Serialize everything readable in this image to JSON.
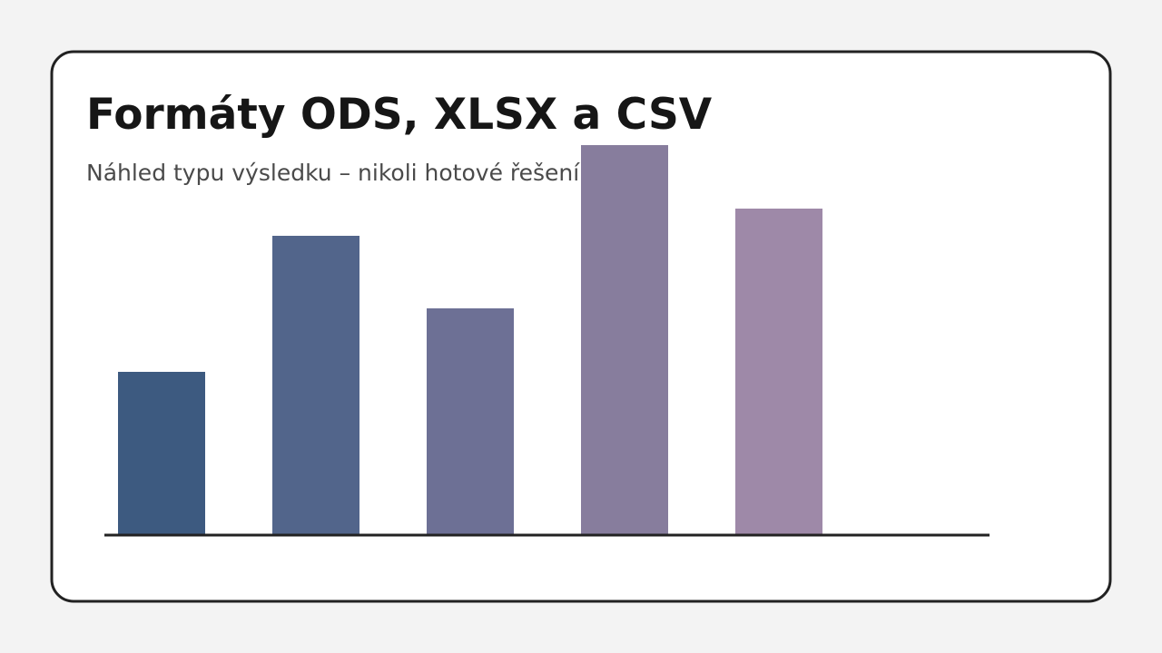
{
  "chart_data": {
    "type": "bar",
    "title": "Formáty ODS, XLSX a CSV",
    "subtitle": "Náhled typu výsledku – nikoli hotové řešení",
    "categories": [
      null,
      null,
      null,
      null,
      null
    ],
    "values": [
      18,
      33,
      25,
      43,
      36
    ],
    "colors": [
      "#3d5a80",
      "#52658b",
      "#6d7095",
      "#877d9d",
      "#9e89a8"
    ],
    "ylim": [
      0,
      43
    ]
  }
}
